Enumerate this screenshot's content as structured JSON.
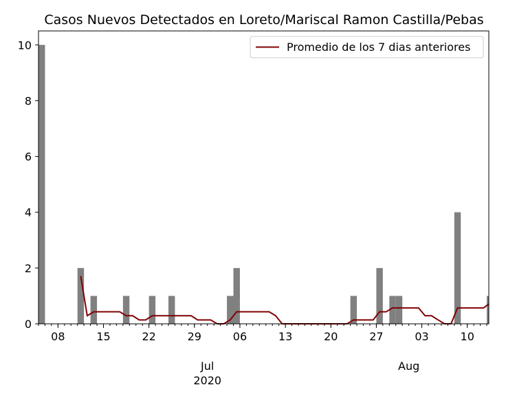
{
  "chart_data": {
    "type": "bar",
    "title": "Casos Nuevos Detectados en Loreto/Mariscal Ramon Castilla/Pebas",
    "xlabel": "",
    "ylabel": "",
    "ylim": [
      0,
      10.5
    ],
    "x_range": [
      "2020-06-05",
      "2020-08-13"
    ],
    "grid": false,
    "legend_position": "top-right",
    "colors": {
      "bars": "#808080",
      "line": "#800000"
    },
    "y_ticks": [
      0,
      2,
      4,
      6,
      8,
      10
    ],
    "x_ticks": [
      {
        "date": "2020-06-08",
        "label": "08"
      },
      {
        "date": "2020-06-15",
        "label": "15"
      },
      {
        "date": "2020-06-22",
        "label": "22"
      },
      {
        "date": "2020-06-29",
        "label": "29"
      },
      {
        "date": "2020-07-06",
        "label": "06"
      },
      {
        "date": "2020-07-13",
        "label": "13"
      },
      {
        "date": "2020-07-20",
        "label": "20"
      },
      {
        "date": "2020-07-27",
        "label": "27"
      },
      {
        "date": "2020-08-03",
        "label": "03"
      },
      {
        "date": "2020-08-10",
        "label": "10"
      }
    ],
    "month_labels": [
      {
        "date": "2020-07-01",
        "label": "Jul"
      },
      {
        "date": "2020-08-01",
        "label": "Aug"
      }
    ],
    "year_label": {
      "date": "2020-07-01",
      "label": "2020"
    },
    "bars": [
      {
        "date": "2020-06-05",
        "value": 10
      },
      {
        "date": "2020-06-11",
        "value": 2
      },
      {
        "date": "2020-06-13",
        "value": 1
      },
      {
        "date": "2020-06-18",
        "value": 1
      },
      {
        "date": "2020-06-22",
        "value": 1
      },
      {
        "date": "2020-06-25",
        "value": 1
      },
      {
        "date": "2020-07-04",
        "value": 1
      },
      {
        "date": "2020-07-05",
        "value": 2
      },
      {
        "date": "2020-07-23",
        "value": 1
      },
      {
        "date": "2020-07-27",
        "value": 2
      },
      {
        "date": "2020-07-29",
        "value": 1
      },
      {
        "date": "2020-07-30",
        "value": 1
      },
      {
        "date": "2020-08-08",
        "value": 4
      },
      {
        "date": "2020-08-13",
        "value": 1
      }
    ],
    "series": [
      {
        "name": "Promedio de los 7 dias anteriores",
        "points": [
          [
            "2020-06-11",
            1.71
          ],
          [
            "2020-06-12",
            0.29
          ],
          [
            "2020-06-13",
            0.43
          ],
          [
            "2020-06-14",
            0.43
          ],
          [
            "2020-06-15",
            0.43
          ],
          [
            "2020-06-16",
            0.43
          ],
          [
            "2020-06-17",
            0.43
          ],
          [
            "2020-06-18",
            0.29
          ],
          [
            "2020-06-19",
            0.29
          ],
          [
            "2020-06-20",
            0.14
          ],
          [
            "2020-06-21",
            0.14
          ],
          [
            "2020-06-22",
            0.29
          ],
          [
            "2020-06-23",
            0.29
          ],
          [
            "2020-06-24",
            0.29
          ],
          [
            "2020-06-25",
            0.29
          ],
          [
            "2020-06-26",
            0.29
          ],
          [
            "2020-06-27",
            0.29
          ],
          [
            "2020-06-28",
            0.29
          ],
          [
            "2020-06-29",
            0.14
          ],
          [
            "2020-06-30",
            0.14
          ],
          [
            "2020-07-01",
            0.14
          ],
          [
            "2020-07-02",
            0.0
          ],
          [
            "2020-07-03",
            0.0
          ],
          [
            "2020-07-04",
            0.14
          ],
          [
            "2020-07-05",
            0.43
          ],
          [
            "2020-07-06",
            0.43
          ],
          [
            "2020-07-07",
            0.43
          ],
          [
            "2020-07-08",
            0.43
          ],
          [
            "2020-07-09",
            0.43
          ],
          [
            "2020-07-10",
            0.43
          ],
          [
            "2020-07-11",
            0.29
          ],
          [
            "2020-07-12",
            0.0
          ],
          [
            "2020-07-13",
            0.0
          ],
          [
            "2020-07-14",
            0.0
          ],
          [
            "2020-07-15",
            0.0
          ],
          [
            "2020-07-16",
            0.0
          ],
          [
            "2020-07-17",
            0.0
          ],
          [
            "2020-07-18",
            0.0
          ],
          [
            "2020-07-19",
            0.0
          ],
          [
            "2020-07-20",
            0.0
          ],
          [
            "2020-07-21",
            0.0
          ],
          [
            "2020-07-22",
            0.0
          ],
          [
            "2020-07-23",
            0.14
          ],
          [
            "2020-07-24",
            0.14
          ],
          [
            "2020-07-25",
            0.14
          ],
          [
            "2020-07-26",
            0.14
          ],
          [
            "2020-07-27",
            0.43
          ],
          [
            "2020-07-28",
            0.43
          ],
          [
            "2020-07-29",
            0.57
          ],
          [
            "2020-07-30",
            0.57
          ],
          [
            "2020-07-31",
            0.57
          ],
          [
            "2020-08-01",
            0.57
          ],
          [
            "2020-08-02",
            0.57
          ],
          [
            "2020-08-03",
            0.29
          ],
          [
            "2020-08-04",
            0.29
          ],
          [
            "2020-08-05",
            0.14
          ],
          [
            "2020-08-06",
            0.0
          ],
          [
            "2020-08-07",
            0.0
          ],
          [
            "2020-08-08",
            0.57
          ],
          [
            "2020-08-09",
            0.57
          ],
          [
            "2020-08-10",
            0.57
          ],
          [
            "2020-08-11",
            0.57
          ],
          [
            "2020-08-12",
            0.57
          ],
          [
            "2020-08-13",
            0.71
          ]
        ]
      }
    ]
  }
}
